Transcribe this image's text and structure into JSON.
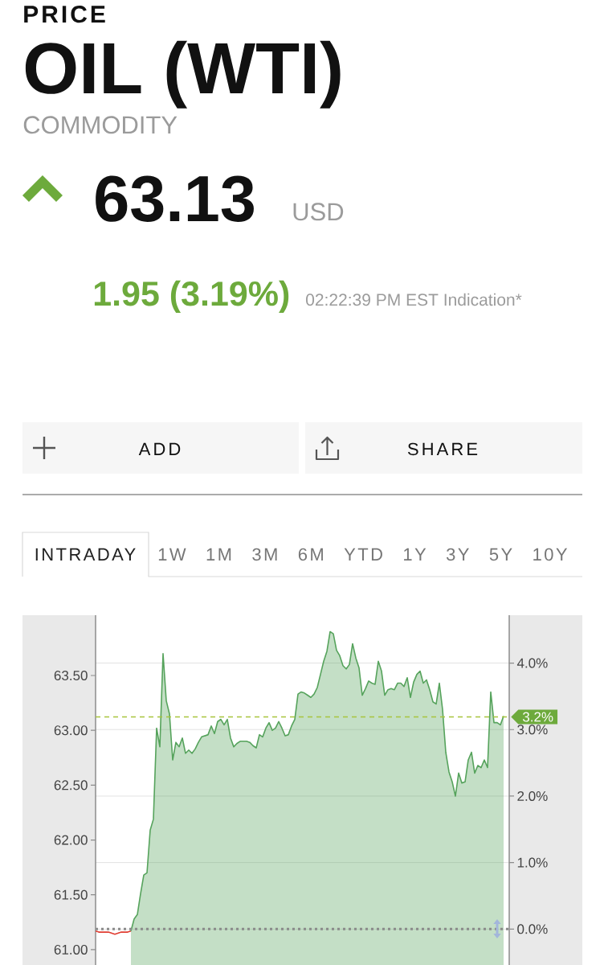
{
  "chart_data": {
    "type": "area",
    "title": "OIL (WTI)",
    "subtitle": "COMMODITY",
    "annotations": [
      "PRICE",
      "63.13",
      "USD",
      "1.95 (3.19%)",
      "02:22:39 PM EST Indication*",
      "ADD",
      "SHARE",
      "INTRADAY",
      "1W",
      "1M",
      "3M",
      "6M",
      "YTD",
      "1Y",
      "3Y",
      "5Y",
      "10Y"
    ],
    "categories": [
      null,
      null,
      null,
      null,
      null,
      null,
      null,
      null,
      null,
      null,
      null,
      null,
      null,
      null,
      null,
      null,
      null,
      null,
      null,
      null,
      null,
      null,
      null,
      null,
      null,
      null,
      null,
      null,
      null,
      null,
      null,
      null,
      null,
      null,
      null,
      null,
      null,
      null,
      null,
      null,
      null,
      null,
      null,
      null,
      null,
      null,
      null,
      null,
      null,
      null,
      null,
      null,
      null,
      null,
      null,
      null,
      null,
      null,
      null,
      null,
      null,
      null,
      null,
      null,
      null,
      null,
      null,
      null,
      null,
      null,
      null,
      null,
      null,
      null,
      null,
      null,
      null,
      null,
      null,
      null,
      null,
      null,
      null,
      null,
      null,
      null,
      null,
      null,
      null,
      null,
      null,
      null,
      null,
      null,
      null,
      null,
      null,
      null,
      null,
      null,
      null,
      null,
      null,
      null,
      null,
      null,
      null,
      null,
      null,
      null,
      null,
      null,
      null,
      null,
      null,
      null,
      null,
      null,
      null,
      null,
      null,
      null,
      null,
      null,
      null,
      null,
      null,
      null
    ],
    "series": [
      {
        "type": "line",
        "color": "#e03c31",
        "values": [
          61.17,
          61.16,
          61.16,
          61.16,
          61.16,
          61.15,
          61.14,
          61.15,
          61.16,
          61.16,
          61.16,
          61.17,
          null,
          null,
          null,
          null,
          null,
          null,
          null,
          null,
          null,
          null,
          null,
          null,
          null,
          null,
          null,
          null,
          null,
          null,
          null,
          null,
          null,
          null,
          null,
          null,
          null,
          null,
          null,
          null,
          null,
          null,
          null,
          null,
          null,
          null,
          null,
          null,
          null,
          null,
          null,
          null,
          null,
          null,
          null,
          null,
          null,
          null,
          null,
          null,
          null,
          null,
          null,
          null,
          null,
          null,
          null,
          null,
          null,
          null,
          null,
          null,
          null,
          null,
          null,
          null,
          null,
          null,
          null,
          null,
          null,
          null,
          null,
          null,
          null,
          null,
          null,
          null,
          null,
          null,
          null,
          null,
          null,
          null,
          null,
          null,
          null,
          null,
          null,
          null,
          null,
          null,
          null,
          null,
          null,
          null,
          null,
          null,
          null,
          null,
          null,
          null,
          null,
          null,
          null,
          null,
          null,
          null,
          null,
          null,
          null,
          null,
          null,
          null,
          null,
          null,
          null,
          null
        ]
      },
      {
        "color": "#56a35c",
        "values": [
          null,
          null,
          null,
          null,
          null,
          null,
          null,
          null,
          null,
          null,
          null,
          61.17,
          61.28,
          61.32,
          61.51,
          61.68,
          61.7,
          62.09,
          62.19,
          63.02,
          62.85,
          63.7,
          63.27,
          63.15,
          62.73,
          62.89,
          62.85,
          62.93,
          62.79,
          62.82,
          62.79,
          62.83,
          62.89,
          62.94,
          62.95,
          62.96,
          63.04,
          62.97,
          63.08,
          63.1,
          63.05,
          63.1,
          62.93,
          62.85,
          62.88,
          62.9,
          62.9,
          62.9,
          62.89,
          62.86,
          62.84,
          62.96,
          62.94,
          63.02,
          63.07,
          63.0,
          63.02,
          63.08,
          63.02,
          62.95,
          62.96,
          63.04,
          63.1,
          63.33,
          63.35,
          63.34,
          63.32,
          63.3,
          63.33,
          63.39,
          63.51,
          63.63,
          63.72,
          63.9,
          63.88,
          63.73,
          63.68,
          63.59,
          63.56,
          63.6,
          63.79,
          63.66,
          63.57,
          63.32,
          63.38,
          63.45,
          63.43,
          63.42,
          63.63,
          63.54,
          63.32,
          63.37,
          63.38,
          63.37,
          63.43,
          63.43,
          63.4,
          63.48,
          63.3,
          63.44,
          63.51,
          63.54,
          63.43,
          63.46,
          63.37,
          63.26,
          63.24,
          63.43,
          63.19,
          62.8,
          62.62,
          62.53,
          62.4,
          62.61,
          62.52,
          62.53,
          62.73,
          62.8,
          62.61,
          62.68,
          62.66,
          62.73,
          62.66,
          63.35,
          63.07,
          63.07,
          63.05,
          63.13
        ]
      }
    ],
    "ylim": [
      60.86,
      64.05
    ],
    "yticks": [
      {
        "value": 61,
        "label": "61.00"
      },
      {
        "value": 61.5,
        "label": "61.50"
      },
      {
        "value": 62,
        "label": "62.00"
      },
      {
        "value": 62.5,
        "label": "62.50"
      },
      {
        "value": 63,
        "label": "63.00"
      },
      {
        "value": 63.5,
        "label": "63.50"
      }
    ],
    "y2lim": [
      -0.54,
      4.72
    ],
    "y2ticks": [
      {
        "value": 0,
        "label": "0.0%"
      },
      {
        "value": 1,
        "label": "1.0%"
      },
      {
        "value": 2,
        "label": "2.0%"
      },
      {
        "value": 3,
        "label": "3.0%"
      },
      {
        "value": 4,
        "label": "4.0%"
      }
    ],
    "ref_lines": [
      {
        "axis": "y2",
        "value": 3.19,
        "label": "3.2%",
        "color": "#a8c43c",
        "line_style": "dashed"
      },
      {
        "axis": "y2",
        "value": 0,
        "color": "#8a8a8a",
        "line_style": "dotted"
      }
    ],
    "grid": "y2"
  }
}
